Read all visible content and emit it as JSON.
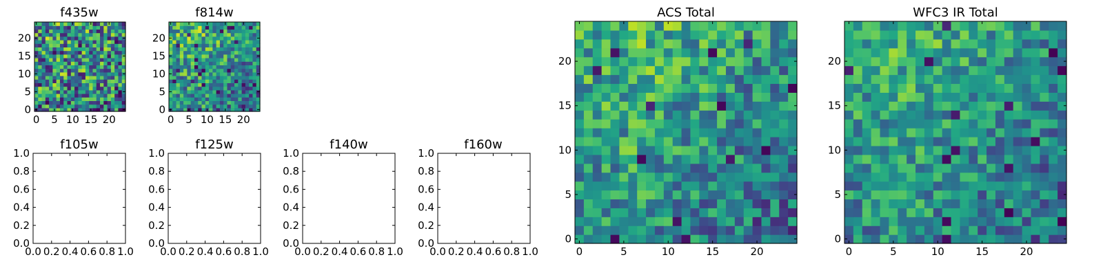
{
  "colormap": {
    "name": "viridis",
    "low": "#440154",
    "high": "#fde725"
  },
  "chart_data": [
    {
      "type": "heatmap",
      "title": "f435w",
      "grid_size": 25,
      "xticks": [
        0,
        5,
        10,
        15,
        20
      ],
      "yticks": [
        0,
        5,
        10,
        15,
        20
      ],
      "xlim": [
        -0.5,
        24.5
      ],
      "ylim": [
        -0.5,
        24.5
      ],
      "seed": 11,
      "gradient": 0.25,
      "noise": 0.95
    },
    {
      "type": "heatmap",
      "title": "f814w",
      "grid_size": 25,
      "xticks": [
        0,
        5,
        10,
        15,
        20
      ],
      "yticks": [
        0,
        5,
        10,
        15,
        20
      ],
      "xlim": [
        -0.5,
        24.5
      ],
      "ylim": [
        -0.5,
        24.5
      ],
      "seed": 23,
      "gradient": 0.6,
      "noise": 0.7
    },
    {
      "type": "empty",
      "title": "f105w",
      "xticks": [
        "0.0",
        "0.2",
        "0.4",
        "0.6",
        "0.8",
        "1.0"
      ],
      "yticks": [
        "0.0",
        "0.2",
        "0.4",
        "0.6",
        "0.8",
        "1.0"
      ],
      "xlim": [
        0,
        1
      ],
      "ylim": [
        0,
        1
      ]
    },
    {
      "type": "empty",
      "title": "f125w",
      "xticks": [
        "0.0",
        "0.2",
        "0.4",
        "0.6",
        "0.8",
        "1.0"
      ],
      "yticks": [
        "0.0",
        "0.2",
        "0.4",
        "0.6",
        "0.8",
        "1.0"
      ],
      "xlim": [
        0,
        1
      ],
      "ylim": [
        0,
        1
      ]
    },
    {
      "type": "empty",
      "title": "f140w",
      "xticks": [
        "0.0",
        "0.2",
        "0.4",
        "0.6",
        "0.8",
        "1.0"
      ],
      "yticks": [
        "0.0",
        "0.2",
        "0.4",
        "0.6",
        "0.8",
        "1.0"
      ],
      "xlim": [
        0,
        1
      ],
      "ylim": [
        0,
        1
      ]
    },
    {
      "type": "empty",
      "title": "f160w",
      "xticks": [
        "0.0",
        "0.2",
        "0.4",
        "0.6",
        "0.8",
        "1.0"
      ],
      "yticks": [
        "0.0",
        "0.2",
        "0.4",
        "0.6",
        "0.8",
        "1.0"
      ],
      "xlim": [
        0,
        1
      ],
      "ylim": [
        0,
        1
      ]
    },
    {
      "type": "heatmap",
      "title": "ACS Total",
      "grid_size": 25,
      "xticks": [
        0,
        5,
        10,
        15,
        20
      ],
      "yticks": [
        0,
        5,
        10,
        15,
        20
      ],
      "xlim": [
        -0.5,
        24.5
      ],
      "ylim": [
        -0.5,
        24.5
      ],
      "seed": 37,
      "gradient": 0.55,
      "noise": 0.6
    },
    {
      "type": "heatmap",
      "title": "WFC3 IR Total",
      "grid_size": 25,
      "xticks": [
        0,
        5,
        10,
        15,
        20
      ],
      "yticks": [
        0,
        5,
        10,
        15,
        20
      ],
      "xlim": [
        -0.5,
        24.5
      ],
      "ylim": [
        -0.5,
        24.5
      ],
      "seed": 53,
      "gradient": 0.5,
      "noise": 0.55
    }
  ]
}
